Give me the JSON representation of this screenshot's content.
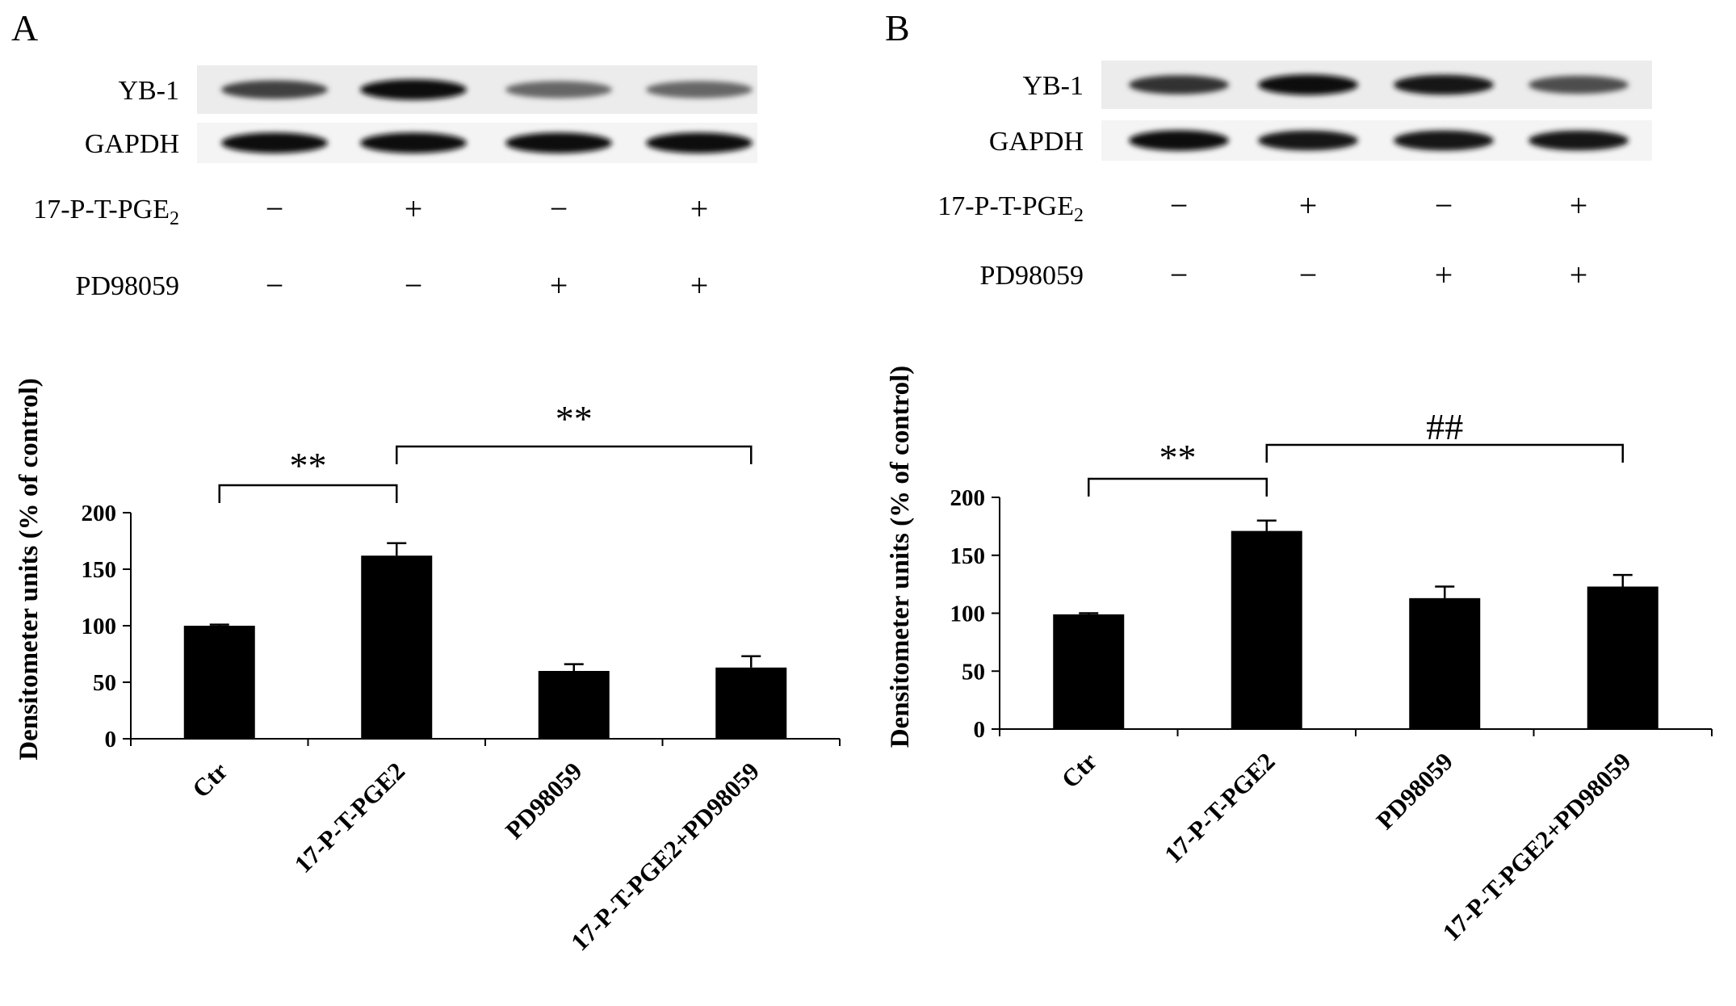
{
  "panels": [
    {
      "letter": "A",
      "blot": {
        "rows": [
          "YB-1",
          "GAPDH"
        ],
        "treatments": [
          {
            "label": "17-P-T-PGE",
            "subscript": "2",
            "signs": [
              "−",
              "+",
              "−",
              "+"
            ]
          },
          {
            "label": "PD98059",
            "subscript": "",
            "signs": [
              "−",
              "−",
              "+",
              "+"
            ]
          }
        ],
        "band_intensity": {
          "YB-1": [
            0.75,
            0.95,
            0.6,
            0.6
          ],
          "GAPDH": [
            0.95,
            0.95,
            0.95,
            0.95
          ]
        }
      },
      "significance": [
        {
          "from": 0,
          "to": 1,
          "label": "**"
        },
        {
          "from": 1,
          "to": 3,
          "label": "**"
        }
      ]
    },
    {
      "letter": "B",
      "blot": {
        "rows": [
          "YB-1",
          "GAPDH"
        ],
        "treatments": [
          {
            "label": "17-P-T-PGE",
            "subscript": "2",
            "signs": [
              "−",
              "+",
              "−",
              "+"
            ]
          },
          {
            "label": "PD98059",
            "subscript": "",
            "signs": [
              "−",
              "−",
              "+",
              "+"
            ]
          }
        ],
        "band_intensity": {
          "YB-1": [
            0.8,
            0.95,
            0.9,
            0.7
          ],
          "GAPDH": [
            0.95,
            0.9,
            0.92,
            0.9
          ]
        }
      },
      "significance": [
        {
          "from": 0,
          "to": 1,
          "label": "**"
        },
        {
          "from": 1,
          "to": 3,
          "label": "##"
        }
      ]
    }
  ],
  "chart_data": [
    {
      "type": "bar",
      "categories": [
        "Ctr",
        "17-P-T-PGE2",
        "PD98059",
        "17-P-T-PGE2+PD98059"
      ],
      "values": [
        100,
        162,
        60,
        63
      ],
      "errors": [
        1,
        11,
        6,
        10
      ],
      "ylabel": "Densitometer units (% of control)",
      "ylim": [
        0,
        200
      ],
      "yticks": [
        0,
        50,
        100,
        150,
        200
      ],
      "bar_color": "#000000",
      "grid": false
    },
    {
      "type": "bar",
      "categories": [
        "Ctr",
        "17-P-T-PGE2",
        "PD98059",
        "17-P-T-PGE2+PD98059"
      ],
      "values": [
        99,
        171,
        113,
        123
      ],
      "errors": [
        1,
        9,
        10,
        10
      ],
      "ylabel": "Densitometer units (% of control)",
      "ylim": [
        0,
        200
      ],
      "yticks": [
        0,
        50,
        100,
        150,
        200
      ],
      "bar_color": "#000000",
      "grid": false
    }
  ]
}
